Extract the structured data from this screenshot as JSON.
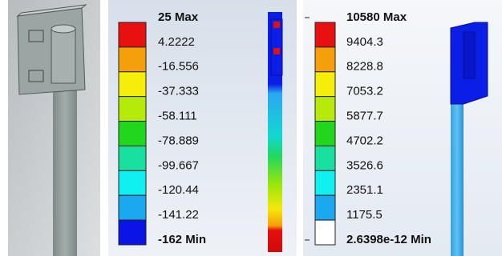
{
  "panels": [
    {
      "legend": {
        "labels": [
          "25 Max",
          "4.2222",
          "-16.556",
          "-37.333",
          "-58.111",
          "-78.889",
          "-99.667",
          "-120.44",
          "-141.22",
          "-162 Min"
        ]
      }
    },
    {
      "legend": {
        "labels": [
          "10580 Max",
          "9404.3",
          "8228.8",
          "7053.2",
          "5877.7",
          "4702.2",
          "3526.6",
          "2351.1",
          "1175.5",
          "2.6398e-12 Min"
        ]
      }
    }
  ]
}
